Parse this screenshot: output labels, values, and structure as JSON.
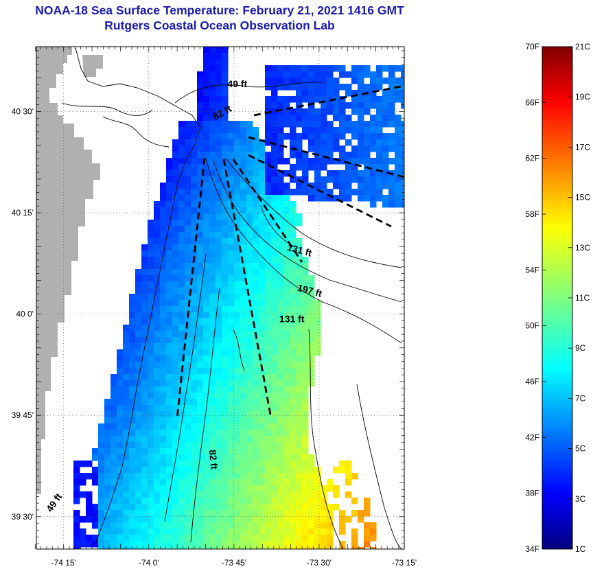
{
  "title": {
    "line1": "NOAA-18 Sea Surface Temperature:  February 21, 2021 1416 GMT",
    "line2": "Rutgers Coastal Ocean Observation Lab"
  },
  "map": {
    "lon_range": [
      -74.33,
      -73.25
    ],
    "lat_range": [
      39.42,
      40.66
    ],
    "lon_ticks": [
      {
        "value": -74.25,
        "label": "-74 15'"
      },
      {
        "value": -74.0,
        "label": "-74 0'"
      },
      {
        "value": -73.75,
        "label": "-73 45'"
      },
      {
        "value": -73.5,
        "label": "-73 30'"
      },
      {
        "value": -73.25,
        "label": "-73 15'"
      }
    ],
    "lat_ticks": [
      {
        "value": 40.5,
        "label": "40 30'"
      },
      {
        "value": 40.25,
        "label": "40 15'"
      },
      {
        "value": 40.0,
        "label": "40 0'"
      },
      {
        "value": 39.75,
        "label": "39 45'"
      },
      {
        "value": 39.5,
        "label": "39 30'"
      }
    ],
    "depth_labels": [
      {
        "text": "49 ft",
        "lon": -73.74,
        "lat": 40.56
      },
      {
        "text": "82 ft",
        "lon": -73.78,
        "lat": 40.49,
        "angle": -30
      },
      {
        "text": "131 ft",
        "lon": -73.56,
        "lat": 40.15,
        "angle": 15
      },
      {
        "text": "197 ft",
        "lon": -73.53,
        "lat": 40.05,
        "angle": 15
      },
      {
        "text": "131 ft",
        "lon": -73.58,
        "lat": 39.98
      },
      {
        "text": "82 ft",
        "lon": -73.82,
        "lat": 39.64,
        "angle": 85
      },
      {
        "text": "49 ft",
        "lon": -74.27,
        "lat": 39.53,
        "angle": -55
      }
    ],
    "colors": {
      "land": "#b0b0b0",
      "cloud": "#ffffff",
      "contour": "#000000",
      "grid": "#555555"
    }
  },
  "colorbar": {
    "f_labels": [
      "70F",
      "66F",
      "62F",
      "58F",
      "54F",
      "50F",
      "46F",
      "42F",
      "38F",
      "34F"
    ],
    "c_labels": [
      "21C",
      "19C",
      "17C",
      "15C",
      "13C",
      "11C",
      "9C",
      "7C",
      "5C",
      "3C",
      "1C"
    ],
    "range_c": [
      1,
      21
    ],
    "colormap": "jet"
  }
}
